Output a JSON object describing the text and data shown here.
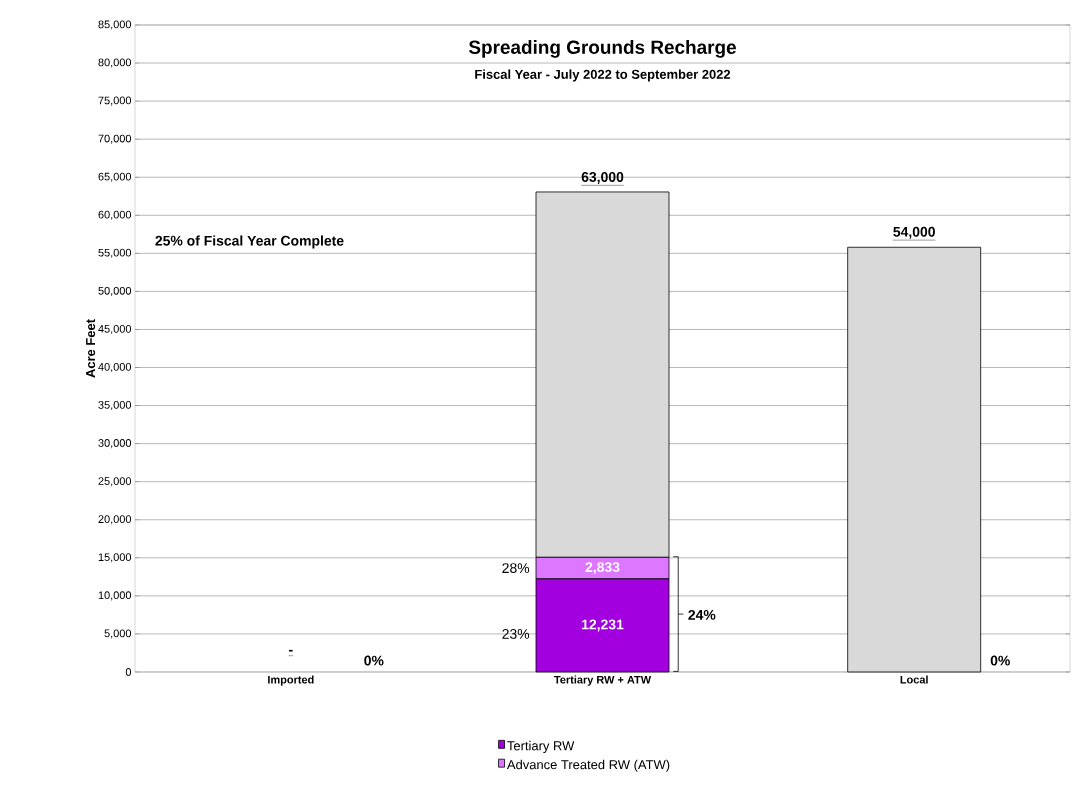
{
  "chart_data": {
    "type": "bar",
    "title": "Spreading Grounds Recharge",
    "subtitle": "Fiscal Year - July 2022 to September 2022",
    "ylabel": "Acre Feet",
    "categories": [
      "Imported",
      "Tertiary RW + ATW",
      "Local"
    ],
    "stacked": true,
    "series": [
      {
        "name": "Tertiary RW",
        "color": "#a300e0",
        "values": [
          0,
          12231,
          0
        ],
        "value_labels": [
          null,
          "12,231",
          null
        ]
      },
      {
        "name": "Advance Treated RW (ATW)",
        "color": "#dd77ff",
        "values": [
          0,
          2833,
          0
        ],
        "value_labels": [
          null,
          "2,833",
          null
        ]
      },
      {
        "color": "#d9d9d9",
        "values": [
          0,
          48000,
          55800
        ]
      }
    ],
    "annotations": [
      "25% of Fiscal Year Complete",
      "-",
      "63,000",
      "54,000",
      "0%",
      "28%",
      "23%",
      "24%",
      "0%"
    ],
    "ylim": [
      0,
      85000
    ],
    "yticks": [
      0,
      {
        "value": 5000,
        "label": "5,000"
      },
      {
        "value": 10000,
        "label": "10,000"
      },
      {
        "value": 15000,
        "label": "15,000"
      },
      {
        "value": 20000,
        "label": "20,000"
      },
      {
        "value": 25000,
        "label": "25,000"
      },
      {
        "value": 30000,
        "label": "30,000"
      },
      {
        "value": 35000,
        "label": "35,000"
      },
      {
        "value": 40000,
        "label": "40,000"
      },
      {
        "value": 45000,
        "label": "45,000"
      },
      {
        "value": 50000,
        "label": "50,000"
      },
      {
        "value": 55000,
        "label": "55,000"
      },
      {
        "value": 60000,
        "label": "60,000"
      },
      {
        "value": 65000,
        "label": "65,000"
      },
      {
        "value": 70000,
        "label": "70,000"
      },
      {
        "value": 75000,
        "label": "75,000"
      },
      {
        "value": 80000,
        "label": "80,000"
      },
      {
        "value": 85000,
        "label": "85,000"
      }
    ],
    "grid": "y",
    "legend": "bottom"
  }
}
